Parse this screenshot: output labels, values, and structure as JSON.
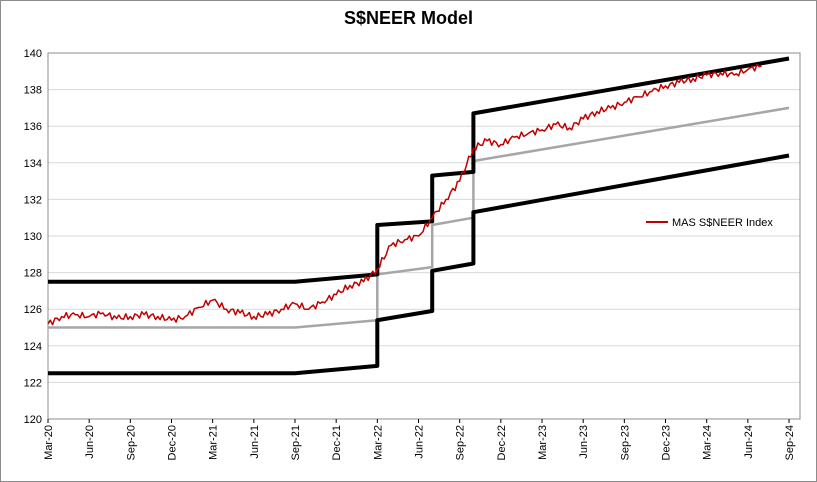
{
  "chart_data": {
    "type": "line",
    "title": "S$NEER Model",
    "xlabel": "",
    "ylabel": "",
    "ylim": [
      120,
      140
    ],
    "yticks": [
      120,
      122,
      124,
      126,
      128,
      130,
      132,
      134,
      136,
      138,
      140
    ],
    "xlim": [
      "2020-03",
      "2024-09"
    ],
    "xticks": [
      "Mar-20",
      "Jun-20",
      "Sep-20",
      "Dec-20",
      "Mar-21",
      "Jun-21",
      "Sep-21",
      "Dec-21",
      "Mar-22",
      "Jun-22",
      "Sep-22",
      "Dec-22",
      "Mar-23",
      "Jun-23",
      "Sep-23",
      "Dec-23",
      "Mar-24",
      "Jun-24",
      "Sep-24"
    ],
    "grid": "horizontal",
    "legend_position": "right",
    "colors": {
      "index": "#c00000",
      "band": "#000000",
      "mid": "#a6a6a6"
    },
    "series": [
      {
        "name": "MAS S$NEER Index",
        "color": "#c00000",
        "points": [
          [
            "2020-03",
            125.2
          ],
          [
            "2020-04",
            125.6
          ],
          [
            "2020-05",
            125.7
          ],
          [
            "2020-06",
            125.6
          ],
          [
            "2020-07",
            125.8
          ],
          [
            "2020-08",
            125.5
          ],
          [
            "2020-09",
            125.6
          ],
          [
            "2020-10",
            125.7
          ],
          [
            "2020-11",
            125.6
          ],
          [
            "2020-12",
            125.4
          ],
          [
            "2021-01",
            125.6
          ],
          [
            "2021-02",
            126.1
          ],
          [
            "2021-03",
            126.5
          ],
          [
            "2021-04",
            126.0
          ],
          [
            "2021-05",
            125.8
          ],
          [
            "2021-06",
            125.6
          ],
          [
            "2021-07",
            125.7
          ],
          [
            "2021-08",
            126.0
          ],
          [
            "2021-09",
            126.3
          ],
          [
            "2021-10",
            126.0
          ],
          [
            "2021-11",
            126.4
          ],
          [
            "2021-12",
            126.8
          ],
          [
            "2022-01",
            127.3
          ],
          [
            "2022-02",
            127.5
          ],
          [
            "2022-03",
            128.2
          ],
          [
            "2022-04",
            129.5
          ],
          [
            "2022-05",
            129.8
          ],
          [
            "2022-06",
            130.0
          ],
          [
            "2022-07",
            131.0
          ],
          [
            "2022-08",
            132.0
          ],
          [
            "2022-09",
            133.0
          ],
          [
            "2022-10",
            134.8
          ],
          [
            "2022-11",
            135.2
          ],
          [
            "2022-12",
            135.0
          ],
          [
            "2023-01",
            135.4
          ],
          [
            "2023-02",
            135.6
          ],
          [
            "2023-03",
            135.8
          ],
          [
            "2023-04",
            136.1
          ],
          [
            "2023-05",
            135.9
          ],
          [
            "2023-06",
            136.4
          ],
          [
            "2023-07",
            136.8
          ],
          [
            "2023-08",
            137.0
          ],
          [
            "2023-09",
            137.3
          ],
          [
            "2023-10",
            137.6
          ],
          [
            "2023-11",
            137.9
          ],
          [
            "2023-12",
            138.2
          ],
          [
            "2024-01",
            138.4
          ],
          [
            "2024-02",
            138.6
          ],
          [
            "2024-03",
            138.8
          ],
          [
            "2024-04",
            138.9
          ],
          [
            "2024-05",
            138.8
          ],
          [
            "2024-06",
            139.1
          ],
          [
            "2024-07",
            139.3
          ]
        ]
      },
      {
        "color": "#000000",
        "points": [
          [
            "2020-03",
            127.5
          ],
          [
            "2021-09",
            127.5
          ],
          [
            "2022-03",
            127.9
          ],
          [
            "2022-03",
            130.6
          ],
          [
            "2022-07",
            130.8
          ],
          [
            "2022-07",
            133.3
          ],
          [
            "2022-10",
            133.5
          ],
          [
            "2022-10",
            136.7
          ],
          [
            "2024-09",
            139.7
          ]
        ]
      },
      {
        "color": "#a6a6a6",
        "points": [
          [
            "2020-03",
            125.0
          ],
          [
            "2021-09",
            125.0
          ],
          [
            "2022-03",
            125.4
          ],
          [
            "2022-03",
            127.9
          ],
          [
            "2022-07",
            128.3
          ],
          [
            "2022-07",
            130.6
          ],
          [
            "2022-10",
            131.0
          ],
          [
            "2022-10",
            134.1
          ],
          [
            "2024-09",
            137.0
          ]
        ]
      },
      {
        "color": "#000000",
        "points": [
          [
            "2020-03",
            122.5
          ],
          [
            "2021-09",
            122.5
          ],
          [
            "2022-03",
            122.9
          ],
          [
            "2022-03",
            125.4
          ],
          [
            "2022-07",
            125.9
          ],
          [
            "2022-07",
            128.1
          ],
          [
            "2022-10",
            128.5
          ],
          [
            "2022-10",
            131.3
          ],
          [
            "2024-09",
            134.4
          ]
        ]
      }
    ]
  }
}
